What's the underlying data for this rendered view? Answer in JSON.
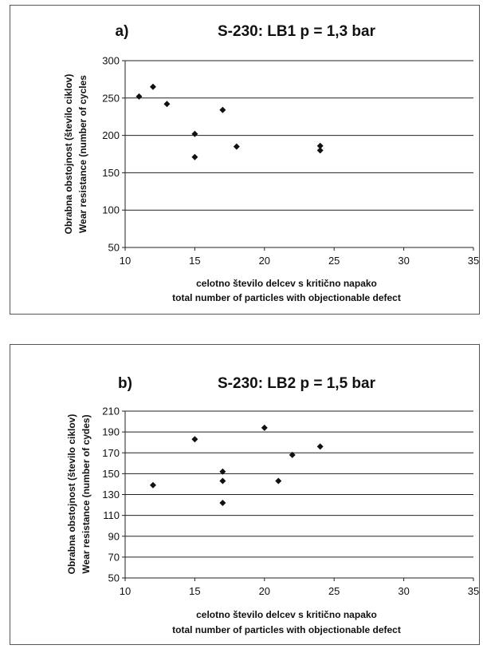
{
  "chart_data": [
    {
      "type": "scatter",
      "panel_label": "a)",
      "title": "S-230: LB1 p = 1,3 bar",
      "xlabel": [
        "celotno število delcev s kritično napako",
        "total number of particles with objectionable defect"
      ],
      "ylabel": [
        "Obrabna obstojnost (število ciklov)",
        "Wear resistance (number of cycles"
      ],
      "xlim": [
        10,
        35
      ],
      "ylim": [
        50,
        300
      ],
      "xticks": [
        10,
        15,
        20,
        25,
        30,
        35
      ],
      "yticks": [
        50,
        100,
        150,
        200,
        250,
        300
      ],
      "grid": "horizontal",
      "legend": "none",
      "marker": "diamond",
      "color": "#111111",
      "points": [
        {
          "x": 11,
          "y": 252
        },
        {
          "x": 12,
          "y": 265
        },
        {
          "x": 13,
          "y": 242
        },
        {
          "x": 15,
          "y": 202
        },
        {
          "x": 15,
          "y": 171
        },
        {
          "x": 17,
          "y": 234
        },
        {
          "x": 18,
          "y": 185
        },
        {
          "x": 24,
          "y": 186
        },
        {
          "x": 24,
          "y": 180
        }
      ]
    },
    {
      "type": "scatter",
      "panel_label": "b)",
      "title": "S-230: LB2 p = 1,5 bar",
      "xlabel": [
        "celotno število delcev s kritično napako",
        "total number of particles with objectionable defect"
      ],
      "ylabel": [
        "Obrabna obstojnost (število ciklov)",
        "Wear resistance (number of cydes)"
      ],
      "xlim": [
        10,
        35
      ],
      "ylim": [
        50,
        210
      ],
      "xticks": [
        10,
        15,
        20,
        25,
        30,
        35
      ],
      "yticks": [
        50,
        70,
        90,
        110,
        130,
        150,
        170,
        190,
        210
      ],
      "grid": "horizontal",
      "legend": "none",
      "marker": "diamond",
      "color": "#111111",
      "points": [
        {
          "x": 12,
          "y": 139
        },
        {
          "x": 15,
          "y": 183
        },
        {
          "x": 17,
          "y": 152
        },
        {
          "x": 17,
          "y": 143
        },
        {
          "x": 17,
          "y": 122
        },
        {
          "x": 20,
          "y": 194
        },
        {
          "x": 21,
          "y": 143
        },
        {
          "x": 22,
          "y": 168
        },
        {
          "x": 24,
          "y": 176
        }
      ]
    }
  ]
}
